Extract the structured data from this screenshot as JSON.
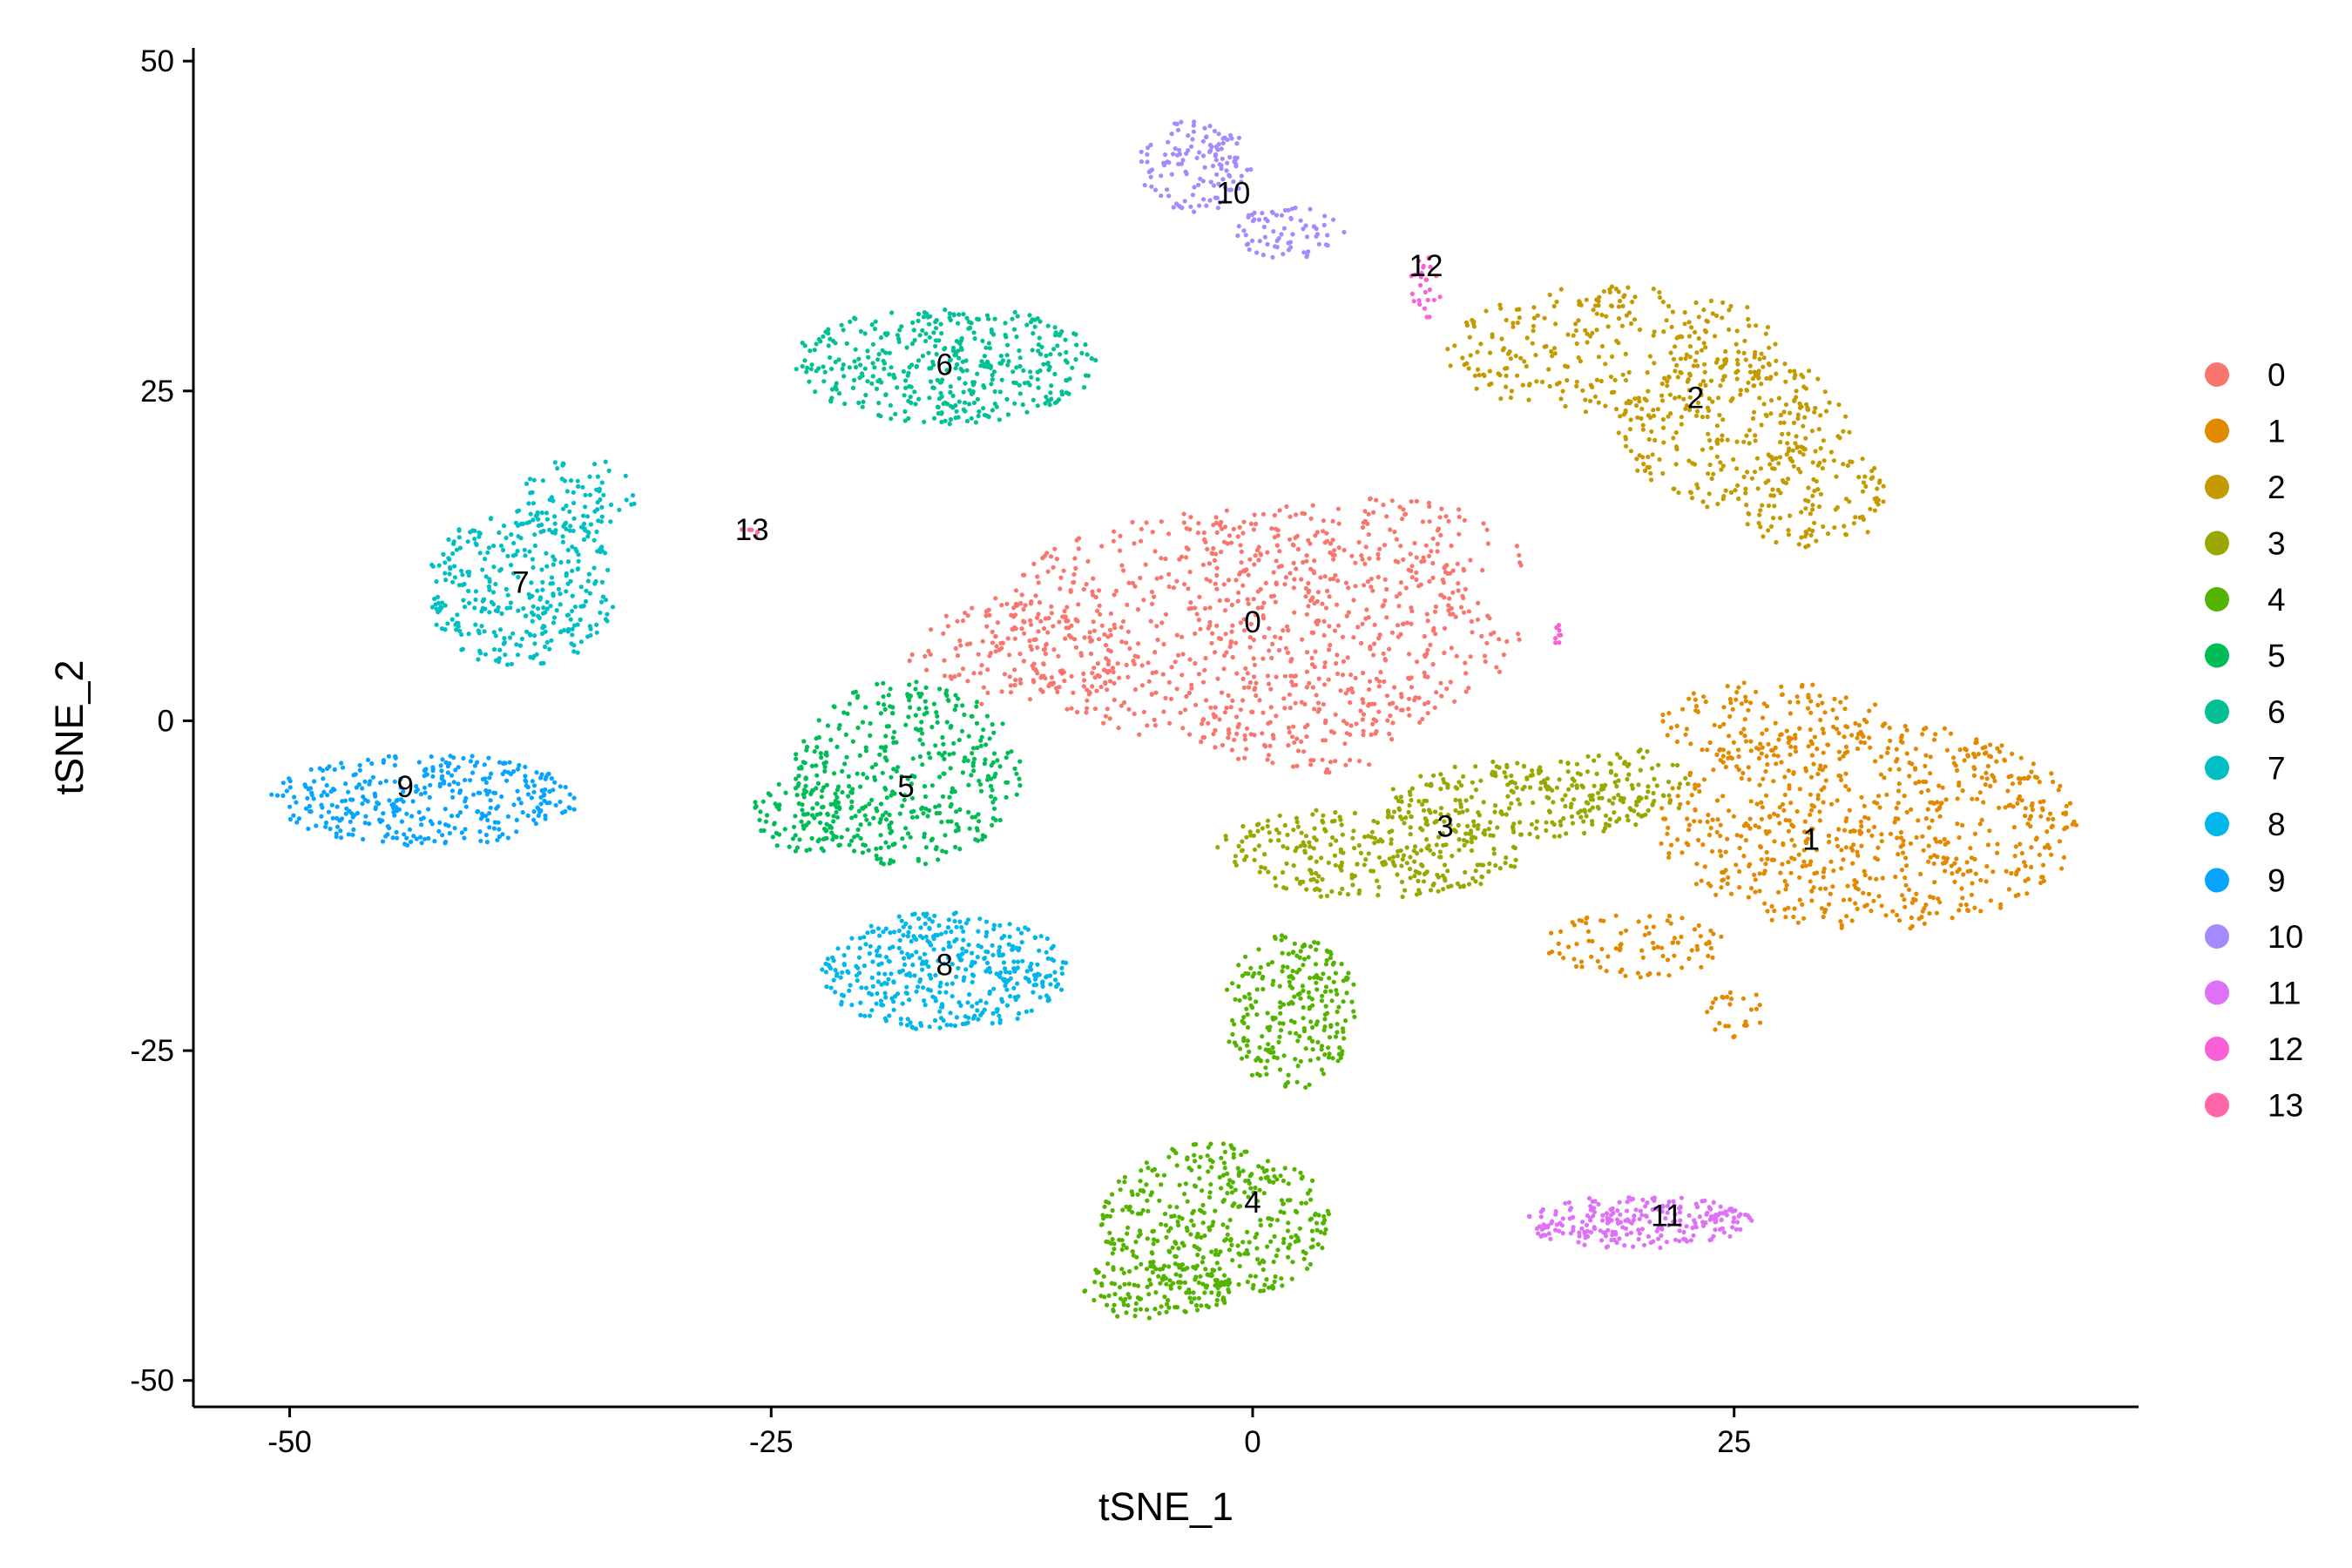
{
  "chart_data": {
    "type": "scatter",
    "title": "",
    "xlabel": "tSNE_1",
    "ylabel": "tSNE_2",
    "xlim": [
      -55,
      46
    ],
    "ylim": [
      -52,
      51
    ],
    "x_ticks": [
      -50,
      -25,
      0,
      25
    ],
    "y_ticks": [
      -50,
      -25,
      0,
      25,
      50
    ],
    "grid": false,
    "legend_position": "right",
    "legend": [
      "0",
      "1",
      "2",
      "3",
      "4",
      "5",
      "6",
      "7",
      "8",
      "9",
      "10",
      "11",
      "12",
      "13"
    ],
    "colors": {
      "0": "#F8766D",
      "1": "#E38900",
      "2": "#C49A00",
      "3": "#99A800",
      "4": "#53B400",
      "5": "#00BC56",
      "6": "#00C094",
      "7": "#00BFC4",
      "8": "#00B6EB",
      "9": "#06A4FF",
      "10": "#A58AFF",
      "11": "#DF70F8",
      "12": "#FB61D7",
      "13": "#FF66A8"
    },
    "series": [
      {
        "name": "0",
        "label_pos": [
          0,
          7.5
        ],
        "regions": [
          {
            "cx": 0,
            "cy": 7,
            "rx": 14,
            "ry": 9,
            "n": 650
          },
          {
            "cx": 6,
            "cy": 12,
            "rx": 8,
            "ry": 5,
            "n": 180
          },
          {
            "cx": -12,
            "cy": 5,
            "rx": 6,
            "ry": 4,
            "n": 150
          },
          {
            "cx": 3,
            "cy": 0,
            "rx": 6,
            "ry": 4,
            "n": 120
          }
        ]
      },
      {
        "name": "1",
        "label_pos": [
          29,
          -9
        ],
        "regions": [
          {
            "cx": 32,
            "cy": -8,
            "rx": 11,
            "ry": 8,
            "n": 700
          },
          {
            "cx": 27,
            "cy": 0,
            "rx": 6,
            "ry": 3,
            "n": 120
          },
          {
            "cx": 20,
            "cy": -17,
            "rx": 5,
            "ry": 2.5,
            "n": 90
          },
          {
            "cx": 25,
            "cy": -22,
            "rx": 1.5,
            "ry": 2,
            "n": 25
          }
        ]
      },
      {
        "name": "2",
        "label_pos": [
          23,
          24.5
        ],
        "regions": [
          {
            "cx": 19,
            "cy": 28,
            "rx": 9,
            "ry": 5,
            "n": 300
          },
          {
            "cx": 25,
            "cy": 22,
            "rx": 6,
            "ry": 6,
            "n": 250
          },
          {
            "cx": 29,
            "cy": 17,
            "rx": 4,
            "ry": 4,
            "n": 120
          }
        ]
      },
      {
        "name": "3",
        "label_pos": [
          10,
          -8
        ],
        "regions": [
          {
            "cx": 6,
            "cy": -10,
            "rx": 8,
            "ry": 3.5,
            "n": 300
          },
          {
            "cx": 14,
            "cy": -6,
            "rx": 7,
            "ry": 3,
            "n": 220
          },
          {
            "cx": 19,
            "cy": -5,
            "rx": 4,
            "ry": 3,
            "n": 80
          }
        ]
      },
      {
        "name": "4",
        "label_pos": [
          0,
          -36.5
        ],
        "regions": [
          {
            "cx": 2,
            "cy": -22,
            "rx": 3.5,
            "ry": 6,
            "n": 250
          },
          {
            "cx": -2,
            "cy": -38,
            "rx": 6,
            "ry": 6,
            "n": 400
          },
          {
            "cx": -5,
            "cy": -43,
            "rx": 4,
            "ry": 2.5,
            "n": 120
          }
        ]
      },
      {
        "name": "5",
        "label_pos": [
          -18,
          -5
        ],
        "regions": [
          {
            "cx": -18,
            "cy": -4,
            "rx": 6,
            "ry": 7,
            "n": 400
          },
          {
            "cx": -23,
            "cy": -7,
            "rx": 3,
            "ry": 3,
            "n": 100
          }
        ]
      },
      {
        "name": "6",
        "label_pos": [
          -16,
          27
        ],
        "regions": [
          {
            "cx": -16,
            "cy": 27,
            "rx": 8,
            "ry": 4.5,
            "n": 420
          }
        ]
      },
      {
        "name": "7",
        "label_pos": [
          -38,
          10.5
        ],
        "regions": [
          {
            "cx": -38,
            "cy": 10,
            "rx": 5,
            "ry": 6,
            "n": 330
          },
          {
            "cx": -35,
            "cy": 17,
            "rx": 3,
            "ry": 3,
            "n": 80
          }
        ]
      },
      {
        "name": "8",
        "label_pos": [
          -16,
          -18.5
        ],
        "regions": [
          {
            "cx": -16,
            "cy": -19,
            "rx": 6.5,
            "ry": 4.5,
            "n": 430
          }
        ]
      },
      {
        "name": "9",
        "label_pos": [
          -44,
          -5
        ],
        "regions": [
          {
            "cx": -43,
            "cy": -6,
            "rx": 8,
            "ry": 3.5,
            "n": 360
          }
        ]
      },
      {
        "name": "10",
        "label_pos": [
          -1,
          40
        ],
        "regions": [
          {
            "cx": -3,
            "cy": 42,
            "rx": 3,
            "ry": 3.5,
            "n": 130
          },
          {
            "cx": 2,
            "cy": 37,
            "rx": 3,
            "ry": 2,
            "n": 70
          }
        ]
      },
      {
        "name": "11",
        "label_pos": [
          21.5,
          -37.5
        ],
        "regions": [
          {
            "cx": 20,
            "cy": -38,
            "rx": 6,
            "ry": 2,
            "n": 250
          }
        ]
      },
      {
        "name": "12",
        "label_pos": [
          9,
          34.5
        ],
        "regions": [
          {
            "cx": 9,
            "cy": 33,
            "rx": 0.8,
            "ry": 2.5,
            "n": 25
          },
          {
            "cx": 16,
            "cy": 6.5,
            "rx": 0.5,
            "ry": 0.8,
            "n": 8
          }
        ]
      },
      {
        "name": "13",
        "label_pos": [
          -26,
          14.5
        ],
        "regions": [
          {
            "cx": -26,
            "cy": 14.5,
            "rx": 0.6,
            "ry": 0.6,
            "n": 5
          }
        ]
      }
    ]
  }
}
